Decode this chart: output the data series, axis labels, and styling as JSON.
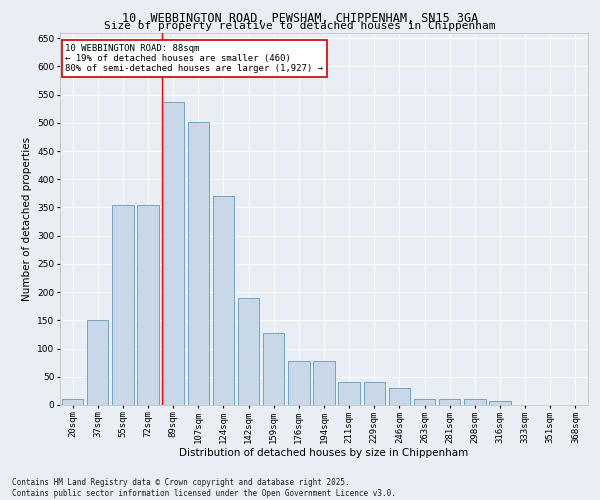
{
  "title1": "10, WEBBINGTON ROAD, PEWSHAM, CHIPPENHAM, SN15 3GA",
  "title2": "Size of property relative to detached houses in Chippenham",
  "xlabel": "Distribution of detached houses by size in Chippenham",
  "ylabel": "Number of detached properties",
  "categories": [
    "20sqm",
    "37sqm",
    "55sqm",
    "72sqm",
    "89sqm",
    "107sqm",
    "124sqm",
    "142sqm",
    "159sqm",
    "176sqm",
    "194sqm",
    "211sqm",
    "229sqm",
    "246sqm",
    "263sqm",
    "281sqm",
    "298sqm",
    "316sqm",
    "333sqm",
    "351sqm",
    "368sqm"
  ],
  "values": [
    10,
    150,
    355,
    355,
    537,
    502,
    370,
    190,
    128,
    78,
    78,
    40,
    40,
    30,
    10,
    10,
    10,
    7,
    0,
    0,
    0
  ],
  "bar_color": "#c8d8e8",
  "bar_edge_color": "#6699bb",
  "red_line_index": 4,
  "annotation_text": "10 WEBBINGTON ROAD: 88sqm\n← 19% of detached houses are smaller (460)\n80% of semi-detached houses are larger (1,927) →",
  "annotation_box_color": "#ffffff",
  "annotation_box_edge": "#cc0000",
  "ylim": [
    0,
    660
  ],
  "yticks": [
    0,
    50,
    100,
    150,
    200,
    250,
    300,
    350,
    400,
    450,
    500,
    550,
    600,
    650
  ],
  "bg_color": "#e8eef4",
  "grid_color": "#ffffff",
  "footer": "Contains HM Land Registry data © Crown copyright and database right 2025.\nContains public sector information licensed under the Open Government Licence v3.0.",
  "title_fontsize": 8.5,
  "subtitle_fontsize": 8.0,
  "axis_label_fontsize": 7.5,
  "tick_fontsize": 6.5,
  "footer_fontsize": 5.5,
  "annot_fontsize": 6.5
}
